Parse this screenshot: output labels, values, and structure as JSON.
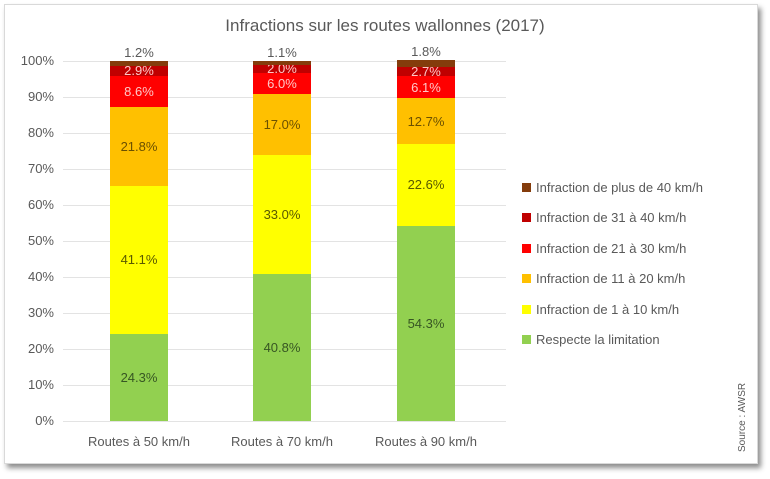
{
  "chart_data": {
    "type": "bar",
    "stacked": true,
    "title": "Infractions sur les routes wallonnes (2017)",
    "xlabel": "",
    "ylabel": "",
    "ylim": [
      0,
      100
    ],
    "yticks": [
      "0%",
      "10%",
      "20%",
      "30%",
      "40%",
      "50%",
      "60%",
      "70%",
      "80%",
      "90%",
      "100%"
    ],
    "grid": true,
    "legend_position": "right",
    "categories": [
      "Routes à 50 km/h",
      "Routes à 70 km/h",
      "Routes à 90 km/h"
    ],
    "series": [
      {
        "name": "Respecte la limitation",
        "color": "#92d050",
        "values": [
          24.3,
          40.8,
          54.3
        ],
        "labels": [
          "24.3%",
          "40.8%",
          "54.3%"
        ]
      },
      {
        "name": "Infraction de 1 à 10 km/h",
        "color": "#ffff00",
        "values": [
          41.1,
          33.0,
          22.6
        ],
        "labels": [
          "41.1%",
          "33.0%",
          "22.6%"
        ]
      },
      {
        "name": "Infraction de 11 à 20 km/h",
        "color": "#ffc000",
        "values": [
          21.8,
          17.0,
          12.7
        ],
        "labels": [
          "21.8%",
          "17.0%",
          "12.7%"
        ]
      },
      {
        "name": "Infraction de 21 à 30 km/h",
        "color": "#ff0000",
        "values": [
          8.6,
          6.0,
          6.1
        ],
        "labels": [
          "8.6%",
          "6.0%",
          "6.1%"
        ]
      },
      {
        "name": "Infraction de 31 à 40 km/h",
        "color": "#c00000",
        "values": [
          2.9,
          2.0,
          2.7
        ],
        "labels": [
          "2.9%",
          "2.0%",
          "2.7%"
        ]
      },
      {
        "name": "Infraction de plus de 40 km/h",
        "color": "#843c0c",
        "values": [
          1.2,
          1.1,
          1.8
        ],
        "labels": [
          "1.2%",
          "1.1%",
          "1.8%"
        ]
      }
    ],
    "annotations": [
      "Source : AWSR"
    ]
  },
  "legend": [
    {
      "label": "Infraction de plus de 40 km/h",
      "color": "#843c0c"
    },
    {
      "label": "Infraction de 31 à 40 km/h",
      "color": "#c00000"
    },
    {
      "label": "Infraction de 21 à 30 km/h",
      "color": "#ff0000"
    },
    {
      "label": "Infraction de 11 à 20 km/h",
      "color": "#ffc000"
    },
    {
      "label": "Infraction de 1 à 10 km/h",
      "color": "#ffff00"
    },
    {
      "label": "Respecte la limitation",
      "color": "#92d050"
    }
  ],
  "source": "Source : AWSR"
}
